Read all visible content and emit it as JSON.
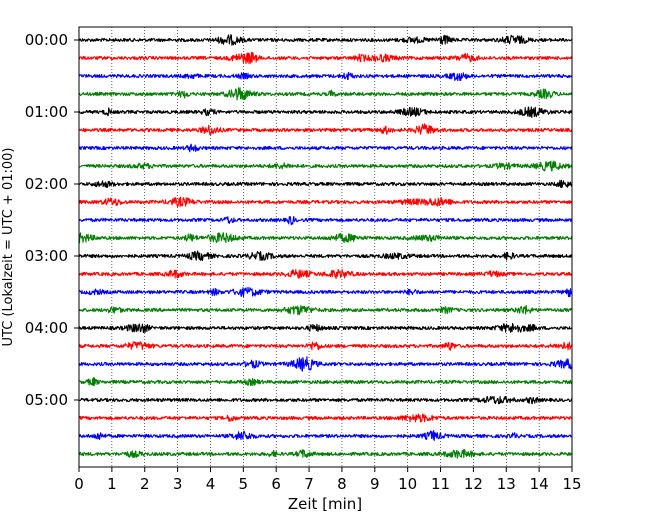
{
  "chart_data": {
    "type": "line",
    "title": "",
    "xlabel": "Zeit  [min]",
    "ylabel": "UTC (Lokalzeit = UTC + 01:00)",
    "xlim": [
      0,
      15
    ],
    "x_ticks": [
      0,
      1,
      2,
      3,
      4,
      5,
      6,
      7,
      8,
      9,
      10,
      11,
      12,
      13,
      14,
      15
    ],
    "y_tick_labels": [
      "00:00",
      "01:00",
      "02:00",
      "03:00",
      "04:00",
      "05:00"
    ],
    "grid": "vertical dotted",
    "line_colors": [
      "#000000",
      "#ff0000",
      "#0000ff",
      "#007f00"
    ],
    "traces": [
      {
        "start": "00:00",
        "color": "#000000"
      },
      {
        "start": "00:15",
        "color": "#ff0000"
      },
      {
        "start": "00:30",
        "color": "#0000ff"
      },
      {
        "start": "00:45",
        "color": "#007f00"
      },
      {
        "start": "01:00",
        "color": "#000000"
      },
      {
        "start": "01:15",
        "color": "#ff0000"
      },
      {
        "start": "01:30",
        "color": "#0000ff"
      },
      {
        "start": "01:45",
        "color": "#007f00"
      },
      {
        "start": "02:00",
        "color": "#000000"
      },
      {
        "start": "02:15",
        "color": "#ff0000"
      },
      {
        "start": "02:30",
        "color": "#0000ff"
      },
      {
        "start": "02:45",
        "color": "#007f00"
      },
      {
        "start": "03:00",
        "color": "#000000"
      },
      {
        "start": "03:15",
        "color": "#ff0000"
      },
      {
        "start": "03:30",
        "color": "#0000ff"
      },
      {
        "start": "03:45",
        "color": "#007f00"
      },
      {
        "start": "04:00",
        "color": "#000000"
      },
      {
        "start": "04:15",
        "color": "#ff0000"
      },
      {
        "start": "04:30",
        "color": "#0000ff"
      },
      {
        "start": "04:45",
        "color": "#007f00"
      },
      {
        "start": "05:00",
        "color": "#000000"
      },
      {
        "start": "05:15",
        "color": "#ff0000"
      },
      {
        "start": "05:30",
        "color": "#0000ff"
      },
      {
        "start": "05:45",
        "color": "#007f00"
      }
    ]
  }
}
